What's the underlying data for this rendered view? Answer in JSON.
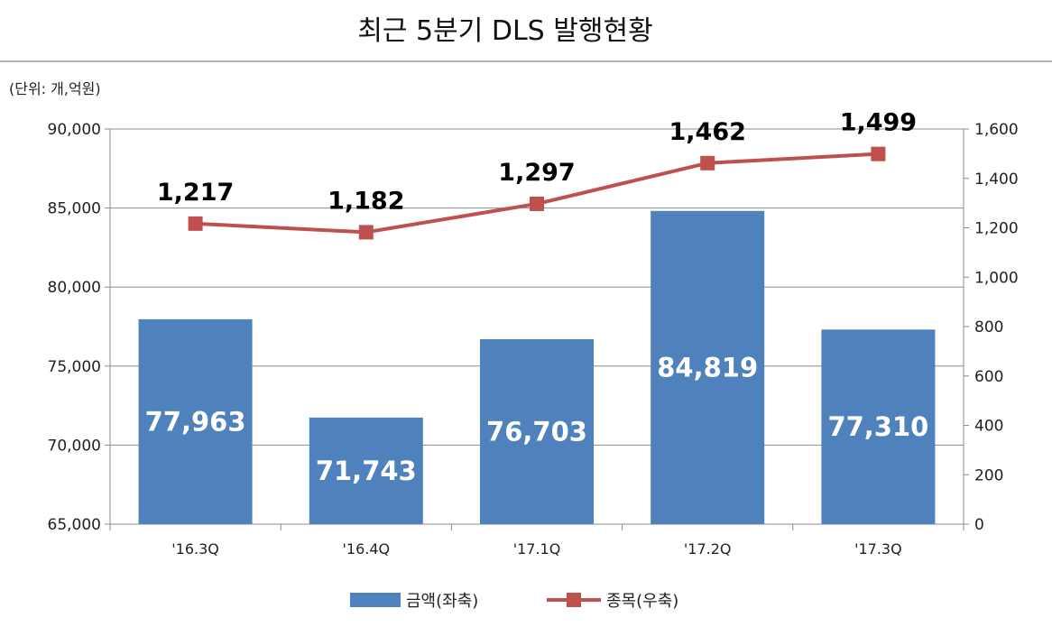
{
  "chart_data": {
    "type": "bar",
    "title": "최근 5분기 DLS 발행현황",
    "unit_label": "(단위: 개,억원)",
    "categories": [
      "'16.3Q",
      "'16.4Q",
      "'17.1Q",
      "'17.2Q",
      "'17.3Q"
    ],
    "series": [
      {
        "name": "금액(좌축)",
        "type": "bar",
        "axis": "left",
        "color": "#4F81BD",
        "values": [
          77963,
          71743,
          76703,
          84819,
          77310
        ],
        "labels": [
          "77,963",
          "71,743",
          "76,703",
          "84,819",
          "77,310"
        ]
      },
      {
        "name": "종목(우축)",
        "type": "line",
        "axis": "right",
        "color": "#C0504D",
        "values": [
          1217,
          1182,
          1297,
          1462,
          1499
        ],
        "labels": [
          "1,217",
          "1,182",
          "1,297",
          "1,462",
          "1,499"
        ]
      }
    ],
    "y_left": {
      "range": [
        65000,
        90000
      ],
      "ticks": [
        65000,
        70000,
        75000,
        80000,
        85000,
        90000
      ],
      "tick_labels": [
        "65,000",
        "70,000",
        "75,000",
        "80,000",
        "85,000",
        "90,000"
      ]
    },
    "y_right": {
      "range": [
        0,
        1600
      ],
      "ticks": [
        0,
        200,
        400,
        600,
        800,
        1000,
        1200,
        1400,
        1600
      ],
      "tick_labels": [
        "0",
        "200",
        "400",
        "600",
        "800",
        "1,000",
        "1,200",
        "1,400",
        "1,600"
      ]
    },
    "grid": true,
    "legend_position": "bottom-center"
  }
}
